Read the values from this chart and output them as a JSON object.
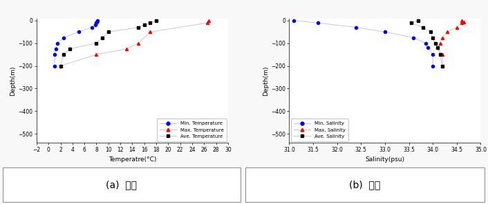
{
  "left": {
    "title": "(a)  동계",
    "xlabel": "Temperatre(°C)",
    "ylabel": "Depth(m)",
    "xlim": [
      -2,
      30
    ],
    "ylim": [
      -540,
      10
    ],
    "xticks": [
      -2,
      0,
      2,
      4,
      6,
      8,
      10,
      12,
      14,
      16,
      18,
      20,
      22,
      24,
      26,
      28,
      30
    ],
    "yticks": [
      0,
      -100,
      -200,
      -300,
      -400,
      -500
    ],
    "min_temp": {
      "depth": [
        0,
        -5,
        -10,
        -20,
        -30,
        -50,
        -75,
        -100,
        -125,
        -150,
        -200
      ],
      "value": [
        8.2,
        8.1,
        8.0,
        7.8,
        7.2,
        5.0,
        2.5,
        1.5,
        1.2,
        1.0,
        1.0
      ],
      "color": "blue",
      "marker": "o",
      "label": "Min. Temperature"
    },
    "max_temp": {
      "depth": [
        0,
        -10,
        -50,
        -100,
        -125,
        -150,
        -200
      ],
      "value": [
        26.8,
        26.5,
        17.0,
        15.0,
        13.0,
        8.0,
        2.0
      ],
      "color": "red",
      "marker": "^",
      "label": "Max. Temperature"
    },
    "ave_temp": {
      "depth": [
        0,
        -10,
        -20,
        -30,
        -50,
        -75,
        -100,
        -125,
        -150,
        -200
      ],
      "value": [
        18.0,
        17.0,
        16.0,
        15.0,
        10.0,
        9.0,
        8.0,
        3.5,
        2.5,
        2.0
      ],
      "color": "black",
      "marker": "s",
      "label": "Ave. Temperature"
    }
  },
  "right": {
    "title": "(b)  하계",
    "xlabel": "Salinity(psu)",
    "ylabel": "Depth(m)",
    "xlim": [
      31.0,
      35.0
    ],
    "ylim": [
      -540,
      10
    ],
    "xticks": [
      31.0,
      31.5,
      32.0,
      32.5,
      33.0,
      33.5,
      34.0,
      34.5,
      35.0
    ],
    "yticks": [
      0,
      -100,
      -200,
      -300,
      -400,
      -500
    ],
    "min_sal": {
      "depth": [
        0,
        -10,
        -30,
        -50,
        -75,
        -100,
        -120,
        -150,
        -200
      ],
      "value": [
        31.1,
        31.6,
        32.4,
        33.0,
        33.6,
        33.85,
        33.9,
        34.0,
        34.0
      ],
      "color": "blue",
      "marker": "o",
      "label": "Min. Salinity"
    },
    "max_sal": {
      "depth": [
        0,
        -5,
        -10,
        -30,
        -50,
        -75,
        -100,
        -120,
        -150,
        -200
      ],
      "value": [
        34.6,
        34.65,
        34.6,
        34.5,
        34.3,
        34.2,
        34.15,
        34.1,
        34.2,
        34.2
      ],
      "color": "red",
      "marker": "^",
      "label": "Max. Salinity"
    },
    "ave_sal": {
      "depth": [
        0,
        -10,
        -30,
        -50,
        -75,
        -100,
        -120,
        -150,
        -200
      ],
      "value": [
        33.7,
        33.55,
        33.8,
        33.95,
        34.0,
        34.05,
        34.1,
        34.15,
        34.2
      ],
      "color": "black",
      "marker": "s",
      "label": "Ave. Salinity"
    }
  },
  "line_color": "#c8c8d0",
  "bg_color": "#ffffff",
  "fig_bg": "#f8f8f8",
  "marker_size": 3,
  "linewidth": 0.7
}
